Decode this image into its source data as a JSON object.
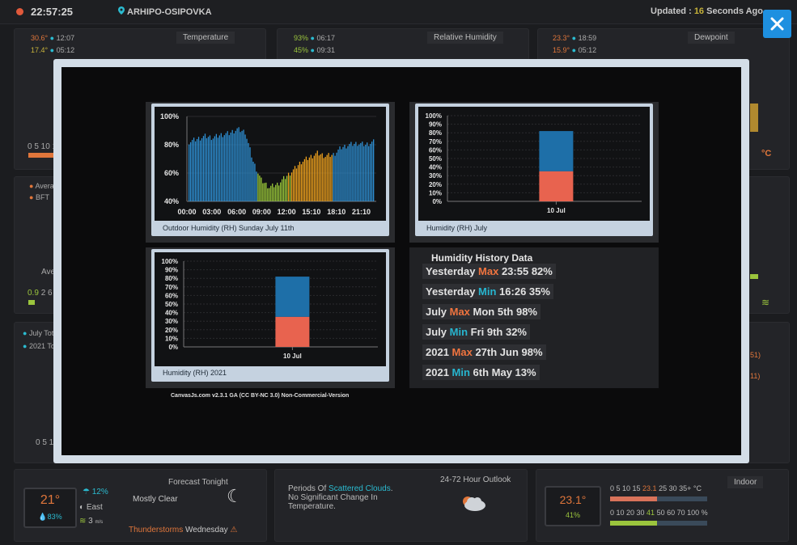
{
  "header": {
    "time": "22:57:25",
    "location": "ARHIPO-OSIPOVKA",
    "updated_label": "Updated : ",
    "updated_value": "16",
    "updated_unit": " Seconds Ago"
  },
  "background": {
    "temperature": {
      "title": "Temperature",
      "hi": "30.6°",
      "hi_time": "12:07",
      "lo": "17.4°",
      "lo_time": "05:12",
      "scale": "0 5 10 1"
    },
    "humidity": {
      "title": "Relative Humidity",
      "hi": "93%",
      "hi_time": "06:17",
      "lo": "45%",
      "lo_time": "09:31"
    },
    "dewpoint": {
      "title": "Dewpoint",
      "hi": "23.3°",
      "hi_time": "18:59",
      "lo": "15.9°",
      "lo_time": "05:12",
      "unit": "°C"
    },
    "wind": {
      "avg": "Avera",
      "bft": "BFT",
      "label": "Ave",
      "scale_hi": "0.9",
      "scale": "2 6"
    },
    "rain": {
      "july": "July Tot",
      "year": "2021 To",
      "scale": "0 5 1",
      "right1": "51)",
      "right2": "11)"
    }
  },
  "modal": {
    "day_chart": {
      "caption": "Outdoor Humidity (RH) Sunday July 11th",
      "y_ticks": [
        "100%",
        "80%",
        "60%",
        "40%"
      ],
      "x_ticks": [
        "00:00",
        "03:00",
        "06:00",
        "09:00",
        "12:00",
        "15:10",
        "18:10",
        "21:10"
      ]
    },
    "month_chart": {
      "caption": "Humidity (RH) July",
      "y_ticks": [
        "100%",
        "90%",
        "80%",
        "70%",
        "60%",
        "50%",
        "40%",
        "30%",
        "20%",
        "10%",
        "0%"
      ],
      "x_tick": "10 Jul"
    },
    "year_chart": {
      "caption": "Humidity (RH) 2021",
      "y_ticks": [
        "100%",
        "90%",
        "80%",
        "70%",
        "60%",
        "50%",
        "40%",
        "30%",
        "20%",
        "10%",
        "0%"
      ],
      "x_tick": "10 Jul"
    },
    "history": {
      "title": "Humidity History Data",
      "rows": [
        {
          "pre": "Yesterday ",
          "tag": "Max",
          "kind": "max",
          "post": " 23:55 82%"
        },
        {
          "pre": "Yesterday ",
          "tag": "Min",
          "kind": "min",
          "post": " 16:26 35%"
        },
        {
          "pre": "July ",
          "tag": "Max",
          "kind": "max",
          "post": " Mon 5th 98%"
        },
        {
          "pre": "July ",
          "tag": "Min",
          "kind": "min",
          "post": " Fri 9th 32%"
        },
        {
          "pre": "2021 ",
          "tag": "Max",
          "kind": "max",
          "post": " 27th Jun 98%"
        },
        {
          "pre": "2021 ",
          "tag": "Min",
          "kind": "min",
          "post": " 6th May 13%"
        }
      ]
    },
    "credit": "CanvasJs.com v2.3.1 GA (CC BY-NC 3.0) Non-Commercial-Version"
  },
  "chart_data": [
    {
      "type": "bar",
      "title": "",
      "caption": "Outdoor Humidity (RH) Sunday July 11th",
      "ylim": [
        40,
        100
      ],
      "x_range": [
        "00:00",
        "23:55"
      ],
      "x": [
        "00:00",
        "01:00",
        "02:00",
        "03:00",
        "04:00",
        "05:00",
        "06:00",
        "07:00",
        "08:00",
        "09:00",
        "10:00",
        "11:00",
        "12:00",
        "13:00",
        "14:00",
        "15:00",
        "16:00",
        "17:00",
        "18:00",
        "19:00",
        "20:00",
        "21:00",
        "22:00",
        "23:00"
      ],
      "values": [
        82,
        84,
        86,
        85,
        87,
        88,
        91,
        89,
        68,
        55,
        50,
        52,
        57,
        62,
        68,
        71,
        74,
        72,
        73,
        78,
        80,
        81,
        80,
        82
      ],
      "colors_by_value": {
        "high": "#2e91d6",
        "mid": "#f0a21d",
        "low": "#9ccb3a"
      }
    },
    {
      "type": "bar",
      "title": "",
      "caption": "Humidity (RH) July",
      "ylim": [
        0,
        100
      ],
      "categories": [
        "10 Jul"
      ],
      "series": [
        {
          "values": [
            35
          ],
          "color": "#e8634f"
        },
        {
          "values": [
            82
          ],
          "color": "#1e6fa8"
        }
      ]
    },
    {
      "type": "bar",
      "title": "",
      "caption": "Humidity (RH) 2021",
      "ylim": [
        0,
        100
      ],
      "categories": [
        "10 Jul"
      ],
      "series": [
        {
          "values": [
            35
          ],
          "color": "#e8634f"
        },
        {
          "values": [
            82
          ],
          "color": "#1e6fa8"
        }
      ]
    }
  ],
  "bottom": {
    "forecast": {
      "title": "Forecast Tonight",
      "temp": "21°",
      "humidity": "83%",
      "rain": "12%",
      "wind_dir": "East",
      "wind_speed": "3",
      "wind_unit": "m/s",
      "condition": "Mostly Clear",
      "alert_word": "Thunderstorms",
      "alert_day": " Wednesday"
    },
    "outlook": {
      "title": "24-72 Hour Outlook",
      "line1_pre": "Periods Of ",
      "line1_hl": "Scattered Clouds",
      "line1_post": ".",
      "line2": "No Significant Change In",
      "line3": "Temperature."
    },
    "indoor": {
      "title": "Indoor",
      "temp": "23.1°",
      "humidity": "41%",
      "temp_scale_pre": "0 5 10 15 ",
      "temp_scale_hl": "23.1",
      "temp_scale_post": " 25 30 35+ °C",
      "hum_scale_pre": "0 10 20 30 ",
      "hum_scale_hl": "41",
      "hum_scale_post": " 50 60 70 100 %"
    }
  }
}
